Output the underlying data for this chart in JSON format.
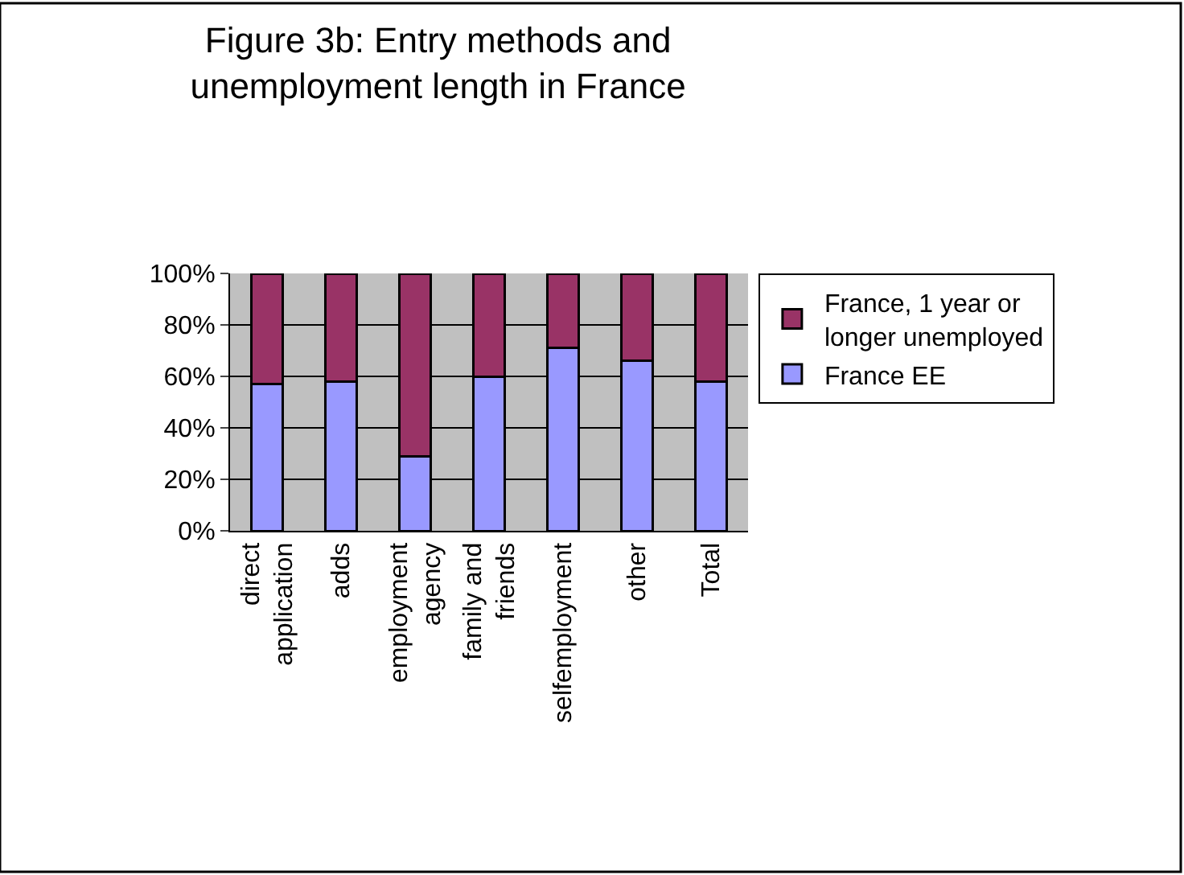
{
  "chart_data": {
    "type": "bar",
    "title": "Figure 3b: Entry methods and unemployment length in France",
    "categories": [
      "direct application",
      "adds",
      "employment agency",
      "family and friends",
      "selfemployment",
      "other",
      "Total"
    ],
    "stacked": true,
    "series": [
      {
        "name": "France EE",
        "color": "#9999ff",
        "values": [
          57,
          58,
          29,
          60,
          71,
          66,
          58
        ]
      },
      {
        "name": "France, 1 year or longer unemployed",
        "color": "#993366",
        "values": [
          43,
          42,
          71,
          40,
          29,
          34,
          42
        ]
      }
    ],
    "ylim": [
      0,
      100
    ],
    "yticks": [
      {
        "value": 0,
        "label": "0%"
      },
      {
        "value": 20,
        "label": "20%"
      },
      {
        "value": 40,
        "label": "40%"
      },
      {
        "value": 60,
        "label": "60%"
      },
      {
        "value": 80,
        "label": "80%"
      },
      {
        "value": 100,
        "label": "100%"
      }
    ],
    "grid": "y",
    "legend": "right"
  }
}
